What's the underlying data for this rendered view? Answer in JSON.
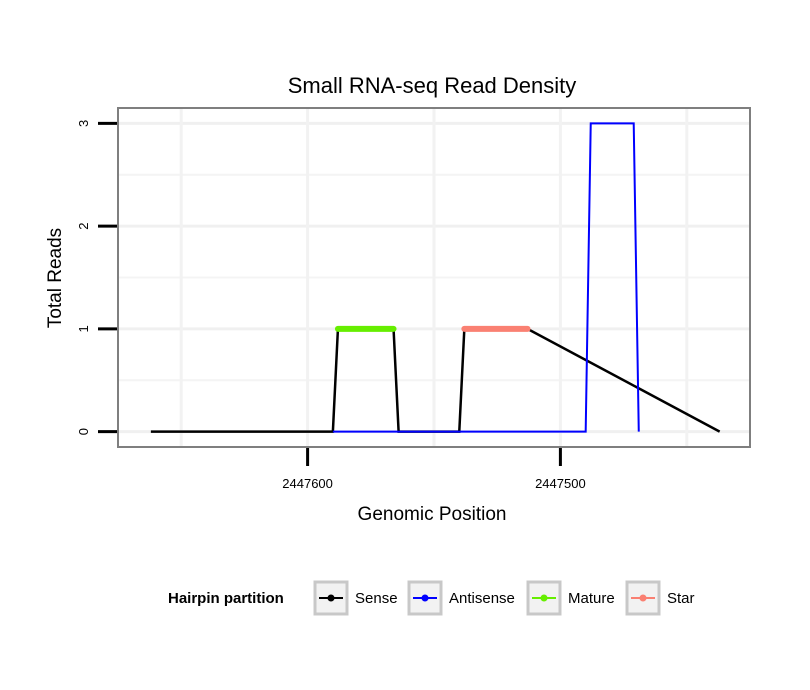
{
  "chart_data": {
    "type": "line",
    "title": "Small RNA-seq Read Density",
    "xlabel": "Genomic Position",
    "ylabel": "Total Reads",
    "xlim_reversed": [
      2447675,
      2447425
    ],
    "ylim": [
      -0.15,
      3.15
    ],
    "x_ticks": [
      {
        "value": 2447600,
        "label": "2447600"
      },
      {
        "value": 2447500,
        "label": "2447500"
      }
    ],
    "y_ticks": [
      {
        "value": 0,
        "label": "0"
      },
      {
        "value": 1,
        "label": "1"
      },
      {
        "value": 2,
        "label": "2"
      },
      {
        "value": 3,
        "label": "3"
      }
    ],
    "grid": true,
    "legend_title": "Hairpin partition",
    "legend_position": "bottom",
    "series": [
      {
        "name": "Sense",
        "color": "#000000",
        "x": [
          2447662,
          2447590,
          2447588,
          2447566,
          2447564,
          2447540,
          2447538,
          2447513,
          2447437
        ],
        "y": [
          0,
          0,
          1,
          1,
          0,
          0,
          1,
          1,
          0
        ]
      },
      {
        "name": "Antisense",
        "color": "#0000ff",
        "x": [
          2447590,
          2447564,
          2447540,
          2447513,
          2447490,
          2447488,
          2447471,
          2447469
        ],
        "y": [
          0,
          0,
          0,
          0,
          0,
          3,
          3,
          0
        ]
      },
      {
        "name": "Mature",
        "color": "#66ee00",
        "x": [
          2447588,
          2447566
        ],
        "y": [
          1,
          1
        ]
      },
      {
        "name": "Star",
        "color": "#fa8072",
        "x": [
          2447538,
          2447513
        ],
        "y": [
          1,
          1
        ]
      }
    ]
  }
}
